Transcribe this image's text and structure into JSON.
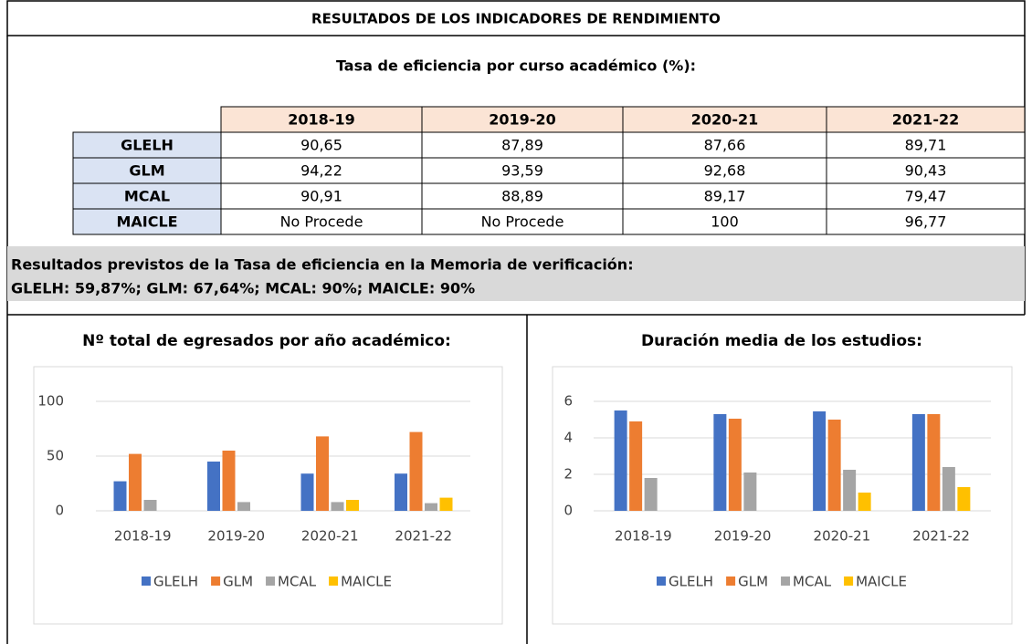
{
  "header": {
    "title": "RESULTADOS DE LOS INDICADORES DE RENDIMIENTO"
  },
  "table": {
    "caption": "Tasa de eficiencia por curso académico (%):",
    "columns": [
      "2018-19",
      "2019-20",
      "2020-21",
      "2021-22"
    ],
    "rows": [
      [
        "GLELH",
        "90,65",
        "87,89",
        "87,66",
        "89,71"
      ],
      [
        "GLM",
        "94,22",
        "93,59",
        "92,68",
        "90,43"
      ],
      [
        "MCAL",
        "90,91",
        "88,89",
        "89,17",
        "79,47"
      ],
      [
        "MAICLE",
        "No Procede",
        "No Procede",
        "100",
        "96,77"
      ]
    ]
  },
  "note": {
    "lines": [
      "Resultados previstos de la Tasa de eficiencia en la Memoria de verificación:",
      "GLELH: 59,87%; GLM: 67,64%; MCAL: 90%; MAICLE: 90%"
    ]
  },
  "chart_data": [
    {
      "type": "bar",
      "title": "Nº total de egresados por año académico:",
      "categories": [
        "2018-19",
        "2019-20",
        "2020-21",
        "2021-22"
      ],
      "series": [
        {
          "name": "GLELH",
          "color": "#4472c4",
          "values": [
            27,
            45,
            34,
            34
          ]
        },
        {
          "name": "GLM",
          "color": "#ed7d31",
          "values": [
            52,
            55,
            68,
            72
          ]
        },
        {
          "name": "MCAL",
          "color": "#a5a5a5",
          "values": [
            10,
            8,
            8,
            7
          ]
        },
        {
          "name": "MAICLE",
          "color": "#ffc000",
          "values": [
            null,
            null,
            10,
            12
          ]
        }
      ],
      "ylim": [
        0,
        100
      ],
      "yticks": [
        0,
        50,
        100
      ],
      "grid": true,
      "legend": "bottom"
    },
    {
      "type": "bar",
      "title": "Duración media de los estudios:",
      "categories": [
        "2018-19",
        "2019-20",
        "2020-21",
        "2021-22"
      ],
      "series": [
        {
          "name": "GLELH",
          "color": "#4472c4",
          "values": [
            5.5,
            5.3,
            5.45,
            5.3
          ]
        },
        {
          "name": "GLM",
          "color": "#ed7d31",
          "values": [
            4.9,
            5.05,
            5.0,
            5.3
          ]
        },
        {
          "name": "MCAL",
          "color": "#a5a5a5",
          "values": [
            1.8,
            2.1,
            2.25,
            2.4
          ]
        },
        {
          "name": "MAICLE",
          "color": "#ffc000",
          "values": [
            null,
            null,
            1.0,
            1.3
          ]
        }
      ],
      "ylim": [
        0,
        6
      ],
      "yticks": [
        0,
        2,
        4,
        6
      ],
      "grid": true,
      "legend": "bottom"
    }
  ]
}
